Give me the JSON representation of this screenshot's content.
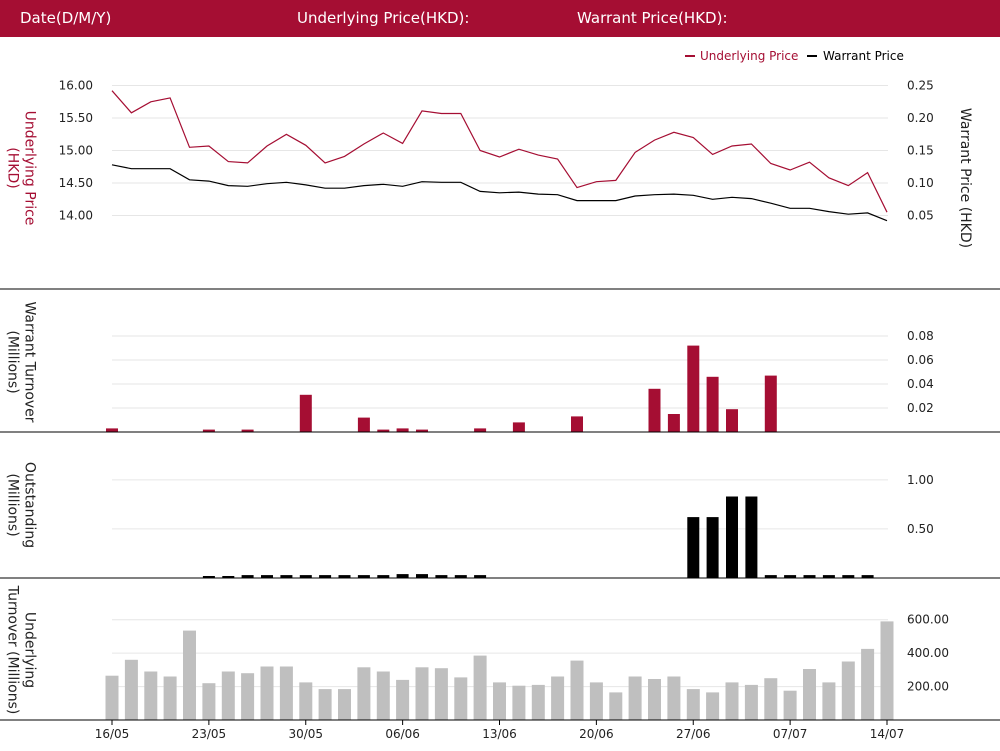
{
  "header": {
    "date_label": "Date(D/M/Y)",
    "underlying_label": "Underlying Price(HKD):",
    "warrant_label": "Warrant Price(HKD):"
  },
  "colors": {
    "header_bg": "#a50e33",
    "underlying": "#a50e33",
    "warrant": "#000000",
    "underlying_turnover_bar": "#bfbfbf",
    "grid": "#e6e6e6",
    "divider": "#000000"
  },
  "chart_data": [
    {
      "id": "price",
      "type": "line",
      "legend": {
        "position": "top-right",
        "items": [
          "Underlying Price",
          "Warrant Price"
        ]
      },
      "ylabel_left": [
        "Underlying Price",
        "(HKD)"
      ],
      "ylabel_right": [
        "Warrant  Price (HKD)"
      ],
      "yticks_left": [
        "16.00",
        "15.50",
        "15.00",
        "14.50",
        "14.00"
      ],
      "yticks_right": [
        "0.25",
        "0.20",
        "0.15",
        "0.10",
        "0.05"
      ],
      "ylim_left": [
        13.5,
        16.1
      ],
      "ylim_right": [
        0.0,
        0.26
      ],
      "grid": true,
      "series": [
        {
          "name": "Underlying Price",
          "axis": "left",
          "values": [
            15.92,
            15.58,
            15.75,
            15.81,
            15.05,
            15.07,
            14.83,
            14.81,
            15.07,
            15.25,
            15.08,
            14.81,
            14.91,
            15.1,
            15.27,
            15.11,
            15.61,
            15.57,
            15.57,
            15.0,
            14.9,
            15.02,
            14.93,
            14.87,
            14.43,
            14.52,
            14.54,
            14.97,
            15.16,
            15.28,
            15.2,
            14.94,
            15.07,
            15.1,
            14.8,
            14.7,
            14.82,
            14.58,
            14.46,
            14.66,
            14.05
          ]
        },
        {
          "name": "Warrant Price",
          "axis": "right",
          "values": [
            0.128,
            0.122,
            0.122,
            0.122,
            0.105,
            0.103,
            0.096,
            0.095,
            0.099,
            0.101,
            0.097,
            0.092,
            0.092,
            0.096,
            0.098,
            0.095,
            0.102,
            0.101,
            0.101,
            0.087,
            0.085,
            0.086,
            0.083,
            0.082,
            0.073,
            0.073,
            0.073,
            0.08,
            0.082,
            0.083,
            0.081,
            0.075,
            0.078,
            0.076,
            0.069,
            0.061,
            0.061,
            0.056,
            0.052,
            0.054,
            0.042
          ]
        }
      ]
    },
    {
      "id": "warrant_turnover",
      "type": "bar",
      "ylabel": [
        "Warrant  Turnover",
        "(Millions)"
      ],
      "yticks": [
        "0.08",
        "0.06",
        "0.04",
        "0.02"
      ],
      "ylim": [
        0,
        0.09
      ],
      "grid": true,
      "values": [
        0.003,
        0,
        0,
        0,
        0,
        0.002,
        0,
        0.002,
        0,
        0,
        0.031,
        0,
        0,
        0.012,
        0.002,
        0.003,
        0.002,
        0,
        0,
        0.003,
        0,
        0.008,
        0,
        0,
        0.013,
        0,
        0,
        0,
        0.036,
        0.015,
        0.072,
        0.046,
        0.019,
        0,
        0.047,
        0,
        0,
        0,
        0,
        0,
        0
      ]
    },
    {
      "id": "outstanding",
      "type": "bar",
      "ylabel": [
        "Outstanding",
        "(Millions)"
      ],
      "yticks": [
        "1.00",
        "0.50"
      ],
      "ylim": [
        0,
        1.1
      ],
      "grid": true,
      "values": [
        0,
        0,
        0,
        0,
        0,
        0.02,
        0.02,
        0.03,
        0.03,
        0.03,
        0.03,
        0.03,
        0.03,
        0.03,
        0.03,
        0.04,
        0.04,
        0.03,
        0.03,
        0.03,
        0,
        0,
        0,
        0,
        0,
        0,
        0,
        0,
        0,
        0,
        0.62,
        0.62,
        0.83,
        0.83,
        0.03,
        0.03,
        0.03,
        0.03,
        0.03,
        0.03,
        0
      ]
    },
    {
      "id": "underlying_turnover",
      "type": "bar",
      "ylabel": [
        "Underlying",
        "Turnover (Millions)"
      ],
      "yticks": [
        "600.00",
        "400.00",
        "200.00"
      ],
      "ylim": [
        0,
        640
      ],
      "grid": true,
      "xticks": [
        {
          "index": 0,
          "label": "16/05"
        },
        {
          "index": 5,
          "label": "23/05"
        },
        {
          "index": 10,
          "label": "30/05"
        },
        {
          "index": 15,
          "label": "06/06"
        },
        {
          "index": 20,
          "label": "13/06"
        },
        {
          "index": 25,
          "label": "20/06"
        },
        {
          "index": 30,
          "label": "27/06"
        },
        {
          "index": 35,
          "label": "07/07"
        },
        {
          "index": 40,
          "label": "14/07"
        }
      ],
      "values": [
        265,
        360,
        290,
        260,
        535,
        220,
        290,
        280,
        320,
        320,
        225,
        185,
        185,
        315,
        290,
        240,
        315,
        310,
        255,
        385,
        225,
        205,
        210,
        260,
        355,
        225,
        165,
        260,
        245,
        260,
        185,
        165,
        225,
        210,
        250,
        175,
        305,
        225,
        350,
        425,
        590
      ]
    }
  ]
}
